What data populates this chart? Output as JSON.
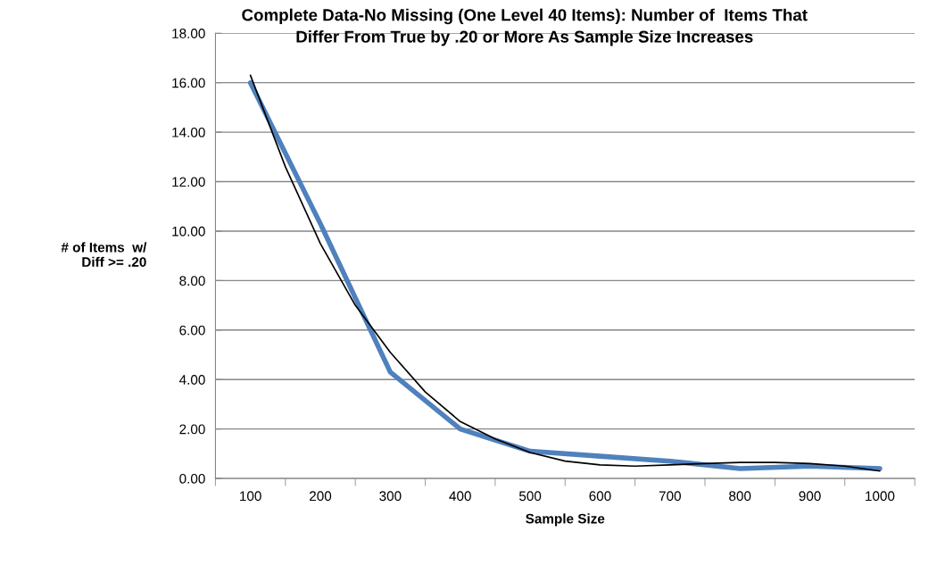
{
  "chart_data": {
    "type": "line",
    "title": "Complete Data-No Missing (One Level 40 Items): Number of  Items That\nDiffer From True by .20 or More As Sample Size Increases",
    "xlabel": "Sample Size",
    "ylabel": "# of Items  w/\nDiff >= .20",
    "xlim": [
      50,
      1050
    ],
    "xticks": [
      {
        "value": 50,
        "label": null
      },
      100,
      {
        "value": 150,
        "label": null
      },
      200,
      {
        "value": 250,
        "label": null
      },
      300,
      {
        "value": 350,
        "label": null
      },
      400,
      {
        "value": 450,
        "label": null
      },
      500,
      {
        "value": 550,
        "label": null
      },
      600,
      {
        "value": 650,
        "label": null
      },
      700,
      {
        "value": 750,
        "label": null
      },
      800,
      {
        "value": 850,
        "label": null
      },
      900,
      {
        "value": 950,
        "label": null
      },
      1000,
      {
        "value": 1050,
        "label": null
      }
    ],
    "ylim": [
      0,
      18
    ],
    "yticks": [
      {
        "value": 0,
        "label": "0.00"
      },
      {
        "value": 2,
        "label": "2.00"
      },
      {
        "value": 4,
        "label": "4.00"
      },
      {
        "value": 6,
        "label": "6.00"
      },
      {
        "value": 8,
        "label": "8.00"
      },
      {
        "value": 10,
        "label": "10.00"
      },
      {
        "value": 12,
        "label": "12.00"
      },
      {
        "value": 14,
        "label": "14.00"
      },
      {
        "value": 16,
        "label": "16.00"
      },
      {
        "value": 18,
        "label": "18.00"
      }
    ],
    "grid": "y",
    "legend": false,
    "series": [
      {
        "color": "#4f81bd",
        "x": [
          100,
          200,
          300,
          400,
          500,
          600,
          700,
          800,
          900,
          1000
        ],
        "values": [
          16.0,
          10.3,
          4.3,
          2.0,
          1.1,
          0.9,
          0.7,
          0.4,
          0.5,
          0.4
        ]
      },
      {
        "color": "#000000",
        "x": [
          100,
          150,
          200,
          250,
          300,
          350,
          400,
          450,
          500,
          550,
          600,
          650,
          700,
          750,
          800,
          850,
          900,
          950,
          1000
        ],
        "values": [
          16.3,
          12.6,
          9.5,
          7.0,
          5.1,
          3.5,
          2.3,
          1.6,
          1.05,
          0.7,
          0.55,
          0.5,
          0.55,
          0.6,
          0.65,
          0.65,
          0.6,
          0.5,
          0.3
        ]
      }
    ]
  }
}
